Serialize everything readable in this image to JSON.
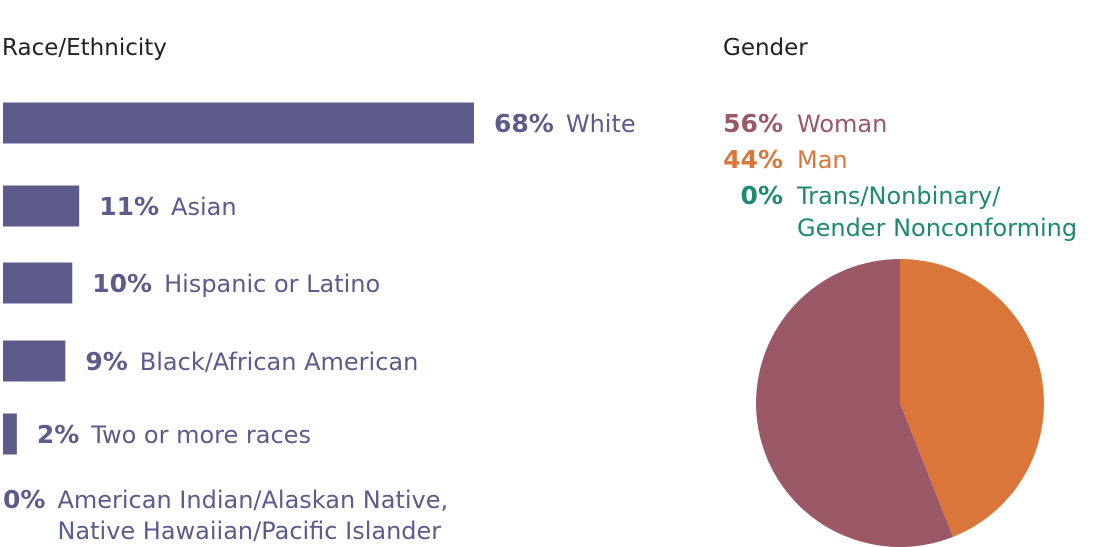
{
  "chart_data": [
    {
      "type": "bar",
      "orientation": "horizontal",
      "title": "Race/Ethnicity",
      "color": "#5d5a8c",
      "xlim": [
        0,
        68
      ],
      "categories": [
        {
          "percent_label": "68%",
          "label": "White",
          "value": 68
        },
        {
          "percent_label": "11%",
          "label": "Asian",
          "value": 11
        },
        {
          "percent_label": "10%",
          "label": "Hispanic or Latino",
          "value": 10
        },
        {
          "percent_label": "9%",
          "label": "Black/African American",
          "value": 9
        },
        {
          "percent_label": "2%",
          "label": "Two or more races",
          "value": 2
        },
        {
          "percent_label": "0%",
          "label": [
            "American Indian/Alaskan Native,",
            "Native Hawaiian/Pacific Islander"
          ],
          "value": 0
        }
      ]
    },
    {
      "type": "pie",
      "title": "Gender",
      "slices": [
        {
          "percent_label": "56%",
          "label": "Woman",
          "value": 56,
          "color": "#9b5866"
        },
        {
          "percent_label": "44%",
          "label": "Man",
          "value": 44,
          "color": "#da763a"
        },
        {
          "percent_label": "0%",
          "label": [
            "Trans/Nonbinary/",
            "Gender Nonconforming"
          ],
          "value": 0,
          "color": "#1e8a72"
        }
      ]
    }
  ]
}
